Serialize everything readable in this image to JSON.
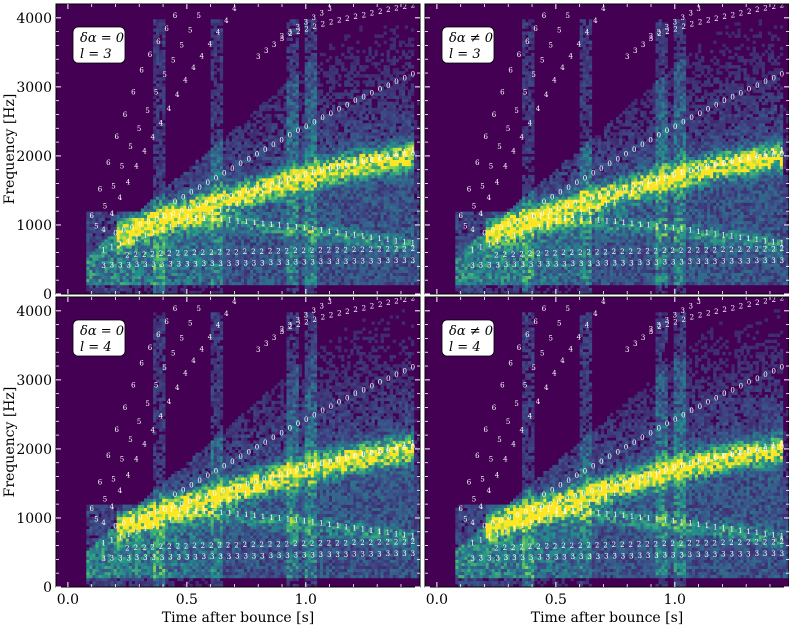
{
  "chart_data": {
    "type": "heatmap",
    "title": "",
    "xlabel": "Time after bounce [s]",
    "ylabel": "Frequency [Hz]",
    "xlim": [
      -0.05,
      1.48
    ],
    "ylim": [
      0,
      4200
    ],
    "xticks": [
      0.0,
      0.5,
      1.0
    ],
    "xtick_labels": [
      "0.0",
      "0.5",
      "1.0"
    ],
    "yticks": [
      0,
      1000,
      2000,
      3000,
      4000
    ],
    "ytick_labels": [
      "0",
      "1000",
      "2000",
      "3000",
      "4000"
    ],
    "colormap": [
      "#440154",
      "#3b528b",
      "#21918c",
      "#5ec962",
      "#fde725"
    ],
    "panels": [
      {
        "label_line1": "δα = 0",
        "label_line2": "l = 3"
      },
      {
        "label_line1": "δα ≠ 0",
        "label_line2": "l = 3"
      },
      {
        "label_line1": "δα = 0",
        "label_line2": "l = 4"
      },
      {
        "label_line1": "δα ≠ 0",
        "label_line2": "l = 4"
      }
    ],
    "mode_tracks": [
      {
        "name": "0",
        "t": [
          0.2,
          0.4,
          0.6,
          0.8,
          1.0,
          1.2,
          1.45
        ],
        "f": [
          850,
          1080,
          1300,
          1500,
          1700,
          1860,
          2000
        ]
      },
      {
        "name": "0",
        "t": [
          0.45,
          0.7,
          0.95,
          1.2,
          1.45
        ],
        "f": [
          1300,
          1800,
          2300,
          2750,
          3150
        ]
      },
      {
        "name": "1",
        "t": [
          0.15,
          0.4,
          0.7,
          1.0,
          1.45
        ],
        "f": [
          600,
          900,
          1250,
          1700,
          2050
        ]
      },
      {
        "name": "1",
        "t": [
          0.4,
          0.7,
          1.0,
          1.2,
          1.45
        ],
        "f": [
          1100,
          1030,
          920,
          820,
          700
        ]
      },
      {
        "name": "2",
        "t": [
          0.25,
          0.5,
          0.8,
          1.1,
          1.45
        ],
        "f": [
          530,
          560,
          580,
          600,
          620
        ]
      },
      {
        "name": "3",
        "t": [
          0.15,
          0.5,
          0.9,
          1.2,
          1.45
        ],
        "f": [
          380,
          400,
          420,
          440,
          450
        ]
      },
      {
        "name": "4",
        "t": [
          0.15,
          0.3,
          0.5,
          0.7
        ],
        "f": [
          900,
          1900,
          3100,
          4100
        ]
      },
      {
        "name": "5",
        "t": [
          0.12,
          0.25,
          0.4,
          0.55
        ],
        "f": [
          950,
          2000,
          3100,
          4000
        ]
      },
      {
        "name": "6",
        "t": [
          0.1,
          0.2,
          0.32,
          0.45
        ],
        "f": [
          1100,
          2200,
          3300,
          4000
        ]
      },
      {
        "name": "2",
        "t": [
          0.9,
          1.1,
          1.3,
          1.45
        ],
        "f": [
          3700,
          3900,
          4050,
          4150
        ]
      },
      {
        "name": "3",
        "t": [
          0.8,
          0.95,
          1.1
        ],
        "f": [
          3400,
          3800,
          4100
        ]
      }
    ]
  }
}
